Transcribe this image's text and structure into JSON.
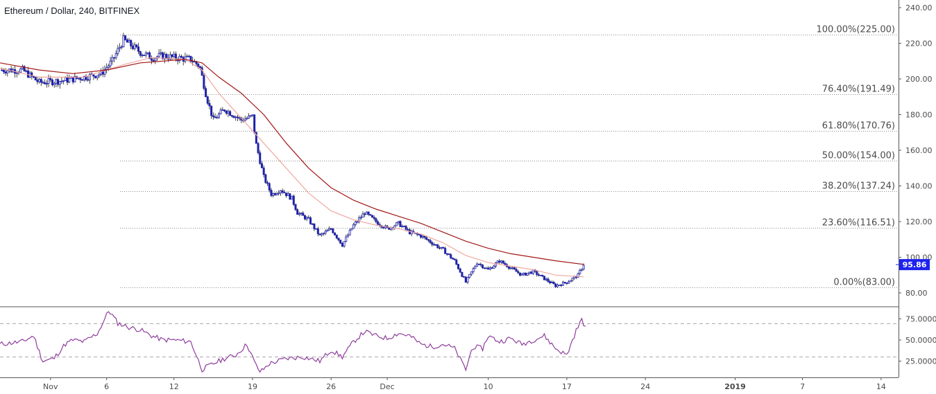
{
  "header": {
    "symbol": "Ethereum / Dollar",
    "interval": "240",
    "exchange": "BITFINEX"
  },
  "colors": {
    "candle_up": "#1e22aa",
    "candle_down": "#1e22aa",
    "wick": "#1a1a1a",
    "ma_slow": "#a31515",
    "ma_fast": "#f0a8a0",
    "rsi": "#8e3d9c",
    "fib_line": "#888888",
    "price_tag": "#1e22ee",
    "axis_line": "#555555",
    "rsi_band": "#aaaaaa"
  },
  "chart_data": [
    {
      "type": "candlestick",
      "title": "Ethereum / Dollar, 240, BITFINEX",
      "ylim": [
        72,
        243
      ],
      "y_ticks": [
        "240.00",
        "220.00",
        "200.00",
        "180.00",
        "160.00",
        "140.00",
        "120.00",
        "100.00",
        "80.00"
      ],
      "y_tick_values": [
        240,
        220,
        200,
        180,
        160,
        140,
        120,
        100,
        80
      ],
      "x_tick_labels": [
        "Nov",
        "6",
        "12",
        "19",
        "26",
        "Dec",
        "10",
        "17",
        "24",
        "2019",
        "7",
        "14"
      ],
      "x_tick_days": [
        1,
        6,
        12,
        19,
        26,
        31,
        40,
        47,
        54,
        62,
        68,
        75
      ],
      "x_tick_bold": [
        "2019"
      ],
      "day_range": [
        -3.5,
        76
      ],
      "last_price": 95.86,
      "last_price_label": "95.86",
      "fib_levels": [
        {
          "label": "100.00%(225.00)",
          "value": 225.0
        },
        {
          "label": "76.40%(191.49)",
          "value": 191.49
        },
        {
          "label": "61.80%(170.76)",
          "value": 170.76
        },
        {
          "label": "50.00%(154.00)",
          "value": 154.0
        },
        {
          "label": "38.20%(137.24)",
          "value": 137.24
        },
        {
          "label": "23.60%(116.51)",
          "value": 116.51
        },
        {
          "label": "0.00%(83.00)",
          "value": 83.0
        }
      ],
      "fib_start_day": 7.2,
      "close_path": [
        [
          -3.5,
          205
        ],
        [
          -1.5,
          205
        ],
        [
          0,
          198
        ],
        [
          2,
          199
        ],
        [
          4,
          201
        ],
        [
          5.5,
          203
        ],
        [
          6.5,
          210
        ],
        [
          7.5,
          222
        ],
        [
          9,
          215
        ],
        [
          10,
          212
        ],
        [
          11,
          213
        ],
        [
          12,
          212
        ],
        [
          13.5,
          211
        ],
        [
          14.3,
          207
        ],
        [
          14.9,
          190
        ],
        [
          15.5,
          177
        ],
        [
          16.5,
          183
        ],
        [
          18,
          177
        ],
        [
          19,
          179
        ],
        [
          19.3,
          164
        ],
        [
          20,
          145
        ],
        [
          20.7,
          135
        ],
        [
          21.5,
          138
        ],
        [
          22.5,
          133
        ],
        [
          23,
          125
        ],
        [
          24,
          121
        ],
        [
          25,
          112
        ],
        [
          26,
          116
        ],
        [
          27,
          107
        ],
        [
          28,
          118
        ],
        [
          29,
          125
        ],
        [
          30,
          120
        ],
        [
          31,
          116
        ],
        [
          32,
          119
        ],
        [
          33,
          114
        ],
        [
          34,
          112
        ],
        [
          35,
          108
        ],
        [
          36,
          104
        ],
        [
          37,
          98
        ],
        [
          38,
          86
        ],
        [
          39,
          97
        ],
        [
          40,
          93
        ],
        [
          41,
          98
        ],
        [
          42,
          94
        ],
        [
          43,
          90
        ],
        [
          44,
          92
        ],
        [
          45,
          88
        ],
        [
          46,
          84
        ],
        [
          47,
          86
        ],
        [
          48,
          90
        ],
        [
          48.5,
          96
        ]
      ],
      "ma_fast_path": [
        [
          -3.5,
          206
        ],
        [
          0,
          201
        ],
        [
          4,
          201
        ],
        [
          7.5,
          208
        ],
        [
          10,
          212
        ],
        [
          13,
          211
        ],
        [
          14.5,
          205
        ],
        [
          16,
          192
        ],
        [
          18,
          178
        ],
        [
          20,
          164
        ],
        [
          22,
          150
        ],
        [
          24,
          136
        ],
        [
          26,
          126
        ],
        [
          28,
          121
        ],
        [
          30,
          118
        ],
        [
          32,
          116
        ],
        [
          34,
          113
        ],
        [
          36,
          108
        ],
        [
          38,
          101
        ],
        [
          40,
          97
        ],
        [
          42,
          95
        ],
        [
          44,
          93
        ],
        [
          46,
          90
        ],
        [
          48.5,
          89
        ]
      ],
      "ma_slow_path": [
        [
          -3.5,
          209
        ],
        [
          0,
          205
        ],
        [
          3,
          203
        ],
        [
          6,
          205
        ],
        [
          9,
          209
        ],
        [
          13,
          211
        ],
        [
          14.5,
          209
        ],
        [
          16,
          201
        ],
        [
          18,
          192
        ],
        [
          20,
          180
        ],
        [
          22,
          164
        ],
        [
          24,
          150
        ],
        [
          26,
          139
        ],
        [
          28,
          132
        ],
        [
          30,
          127
        ],
        [
          32,
          123
        ],
        [
          34,
          119
        ],
        [
          36,
          114
        ],
        [
          38,
          109
        ],
        [
          40,
          105
        ],
        [
          42,
          102
        ],
        [
          44,
          100
        ],
        [
          46,
          98
        ],
        [
          48.5,
          96
        ]
      ]
    },
    {
      "type": "line",
      "title": "",
      "ylim": [
        5,
        85
      ],
      "y_ticks": [
        "75.0000",
        "50.0000",
        "25.0000"
      ],
      "y_tick_values": [
        75,
        50,
        25
      ],
      "bands": [
        70,
        30
      ],
      "series": [
        {
          "values": [
            [
              -3.5,
              45
            ],
            [
              -1.5,
              48
            ],
            [
              -0.5,
              55
            ],
            [
              0.3,
              25
            ],
            [
              1.3,
              28
            ],
            [
              2.3,
              45
            ],
            [
              3,
              50
            ],
            [
              4,
              48
            ],
            [
              5.2,
              58
            ],
            [
              6.2,
              85
            ],
            [
              7,
              70
            ],
            [
              8,
              65
            ],
            [
              9,
              62
            ],
            [
              10,
              55
            ],
            [
              11,
              50
            ],
            [
              12,
              50
            ],
            [
              13.5,
              48
            ],
            [
              14.5,
              15
            ],
            [
              15.5,
              22
            ],
            [
              16.5,
              28
            ],
            [
              17.5,
              32
            ],
            [
              18.5,
              45
            ],
            [
              19.3,
              20
            ],
            [
              19.7,
              12
            ],
            [
              20.5,
              22
            ],
            [
              22,
              28
            ],
            [
              23.5,
              30
            ],
            [
              25,
              25
            ],
            [
              26,
              38
            ],
            [
              27,
              30
            ],
            [
              28,
              48
            ],
            [
              29,
              60
            ],
            [
              30,
              55
            ],
            [
              31,
              52
            ],
            [
              32,
              58
            ],
            [
              33,
              55
            ],
            [
              34,
              45
            ],
            [
              35,
              42
            ],
            [
              36,
              45
            ],
            [
              37,
              40
            ],
            [
              38,
              15
            ],
            [
              38.6,
              42
            ],
            [
              39.5,
              40
            ],
            [
              40,
              55
            ],
            [
              41,
              48
            ],
            [
              42,
              52
            ],
            [
              43,
              45
            ],
            [
              44,
              50
            ],
            [
              45,
              55
            ],
            [
              46,
              40
            ],
            [
              47,
              32
            ],
            [
              47.8,
              60
            ],
            [
              48.3,
              74
            ],
            [
              48.7,
              65
            ]
          ]
        }
      ]
    }
  ]
}
